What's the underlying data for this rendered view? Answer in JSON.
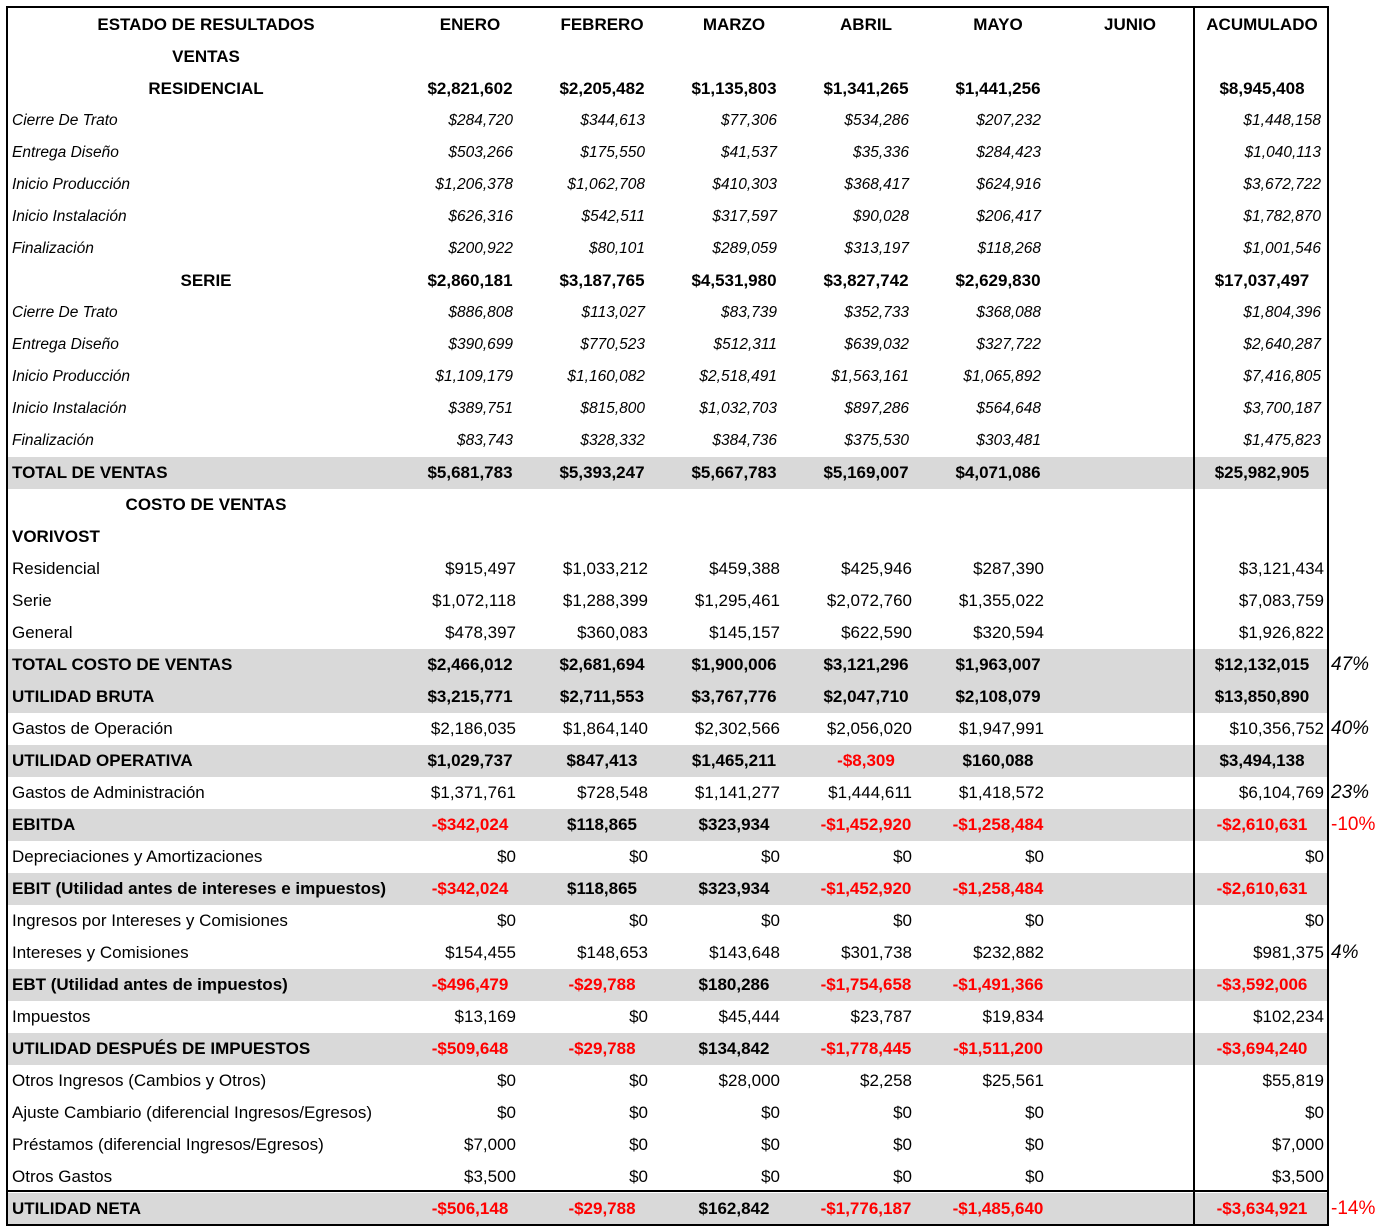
{
  "columns": [
    "ESTADO DE RESULTADOS",
    "ENERO",
    "FEBRERO",
    "MARZO",
    "ABRIL",
    "MAYO",
    "JUNIO",
    "ACUMULADO"
  ],
  "rows": [
    {
      "label": "VENTAS",
      "style": "section",
      "values": [
        "",
        "",
        "",
        "",
        "",
        "",
        ""
      ]
    },
    {
      "label": "RESIDENCIAL",
      "style": "subtotal",
      "values": [
        "$2,821,602",
        "$2,205,482",
        "$1,135,803",
        "$1,341,265",
        "$1,441,256",
        "",
        "$8,945,408"
      ]
    },
    {
      "label": "Cierre De Trato",
      "style": "italic",
      "values": [
        "$284,720",
        "$344,613",
        "$77,306",
        "$534,286",
        "$207,232",
        "",
        "$1,448,158"
      ]
    },
    {
      "label": "Entrega Diseño",
      "style": "italic",
      "values": [
        "$503,266",
        "$175,550",
        "$41,537",
        "$35,336",
        "$284,423",
        "",
        "$1,040,113"
      ]
    },
    {
      "label": "Inicio Producción",
      "style": "italic",
      "values": [
        "$1,206,378",
        "$1,062,708",
        "$410,303",
        "$368,417",
        "$624,916",
        "",
        "$3,672,722"
      ]
    },
    {
      "label": "Inicio Instalación",
      "style": "italic",
      "values": [
        "$626,316",
        "$542,511",
        "$317,597",
        "$90,028",
        "$206,417",
        "",
        "$1,782,870"
      ]
    },
    {
      "label": "Finalización",
      "style": "italic",
      "values": [
        "$200,922",
        "$80,101",
        "$289,059",
        "$313,197",
        "$118,268",
        "",
        "$1,001,546"
      ]
    },
    {
      "label": "SERIE",
      "style": "subtotal",
      "values": [
        "$2,860,181",
        "$3,187,765",
        "$4,531,980",
        "$3,827,742",
        "$2,629,830",
        "",
        "$17,037,497"
      ]
    },
    {
      "label": "Cierre De Trato",
      "style": "italic",
      "values": [
        "$886,808",
        "$113,027",
        "$83,739",
        "$352,733",
        "$368,088",
        "",
        "$1,804,396"
      ]
    },
    {
      "label": "Entrega Diseño",
      "style": "italic",
      "values": [
        "$390,699",
        "$770,523",
        "$512,311",
        "$639,032",
        "$327,722",
        "",
        "$2,640,287"
      ]
    },
    {
      "label": "Inicio Producción",
      "style": "italic",
      "values": [
        "$1,109,179",
        "$1,160,082",
        "$2,518,491",
        "$1,563,161",
        "$1,065,892",
        "",
        "$7,416,805"
      ]
    },
    {
      "label": "Inicio Instalación",
      "style": "italic",
      "values": [
        "$389,751",
        "$815,800",
        "$1,032,703",
        "$897,286",
        "$564,648",
        "",
        "$3,700,187"
      ]
    },
    {
      "label": "Finalización",
      "style": "italic",
      "values": [
        "$83,743",
        "$328,332",
        "$384,736",
        "$375,530",
        "$303,481",
        "",
        "$1,475,823"
      ]
    },
    {
      "label": "TOTAL DE VENTAS",
      "style": "total",
      "values": [
        "$5,681,783",
        "$5,393,247",
        "$5,667,783",
        "$5,169,007",
        "$4,071,086",
        "",
        "$25,982,905"
      ]
    },
    {
      "label": "COSTO DE VENTAS",
      "style": "section",
      "values": [
        "",
        "",
        "",
        "",
        "",
        "",
        ""
      ]
    },
    {
      "label": "VORIVOST",
      "style": "boldlabel",
      "values": [
        "",
        "",
        "",
        "",
        "",
        "",
        ""
      ]
    },
    {
      "label": "Residencial",
      "style": "normal",
      "values": [
        "$915,497",
        "$1,033,212",
        "$459,388",
        "$425,946",
        "$287,390",
        "",
        "$3,121,434"
      ]
    },
    {
      "label": "Serie",
      "style": "normal",
      "values": [
        "$1,072,118",
        "$1,288,399",
        "$1,295,461",
        "$2,072,760",
        "$1,355,022",
        "",
        "$7,083,759"
      ]
    },
    {
      "label": "General",
      "style": "normal",
      "values": [
        "$478,397",
        "$360,083",
        "$145,157",
        "$622,590",
        "$320,594",
        "",
        "$1,926,822"
      ]
    },
    {
      "label": "TOTAL COSTO DE VENTAS",
      "style": "total",
      "values": [
        "$2,466,012",
        "$2,681,694",
        "$1,900,006",
        "$3,121,296",
        "$1,963,007",
        "",
        "$12,132,015"
      ],
      "pct": "47%"
    },
    {
      "label": "UTILIDAD BRUTA",
      "style": "total",
      "values": [
        "$3,215,771",
        "$2,711,553",
        "$3,767,776",
        "$2,047,710",
        "$2,108,079",
        "",
        "$13,850,890"
      ]
    },
    {
      "label": "Gastos de Operación",
      "style": "normal",
      "values": [
        "$2,186,035",
        "$1,864,140",
        "$2,302,566",
        "$2,056,020",
        "$1,947,991",
        "",
        "$10,356,752"
      ],
      "pct": "40%"
    },
    {
      "label": "UTILIDAD OPERATIVA",
      "style": "total",
      "values": [
        "$1,029,737",
        "$847,413",
        "$1,465,211",
        "-$8,309",
        "$160,088",
        "",
        "$3,494,138"
      ]
    },
    {
      "label": "Gastos de Administración",
      "style": "normal",
      "values": [
        "$1,371,761",
        "$728,548",
        "$1,141,277",
        "$1,444,611",
        "$1,418,572",
        "",
        "$6,104,769"
      ],
      "pct": "23%"
    },
    {
      "label": "EBITDA",
      "style": "total",
      "values": [
        "-$342,024",
        "$118,865",
        "$323,934",
        "-$1,452,920",
        "-$1,258,484",
        "",
        "-$2,610,631"
      ],
      "pct": "-10%"
    },
    {
      "label": "Depreciaciones y Amortizaciones",
      "style": "normal",
      "values": [
        "$0",
        "$0",
        "$0",
        "$0",
        "$0",
        "",
        "$0"
      ]
    },
    {
      "label": "EBIT (Utilidad antes de intereses e impuestos)",
      "style": "total",
      "values": [
        "-$342,024",
        "$118,865",
        "$323,934",
        "-$1,452,920",
        "-$1,258,484",
        "",
        "-$2,610,631"
      ]
    },
    {
      "label": "Ingresos por Intereses y Comisiones",
      "style": "normal",
      "values": [
        "$0",
        "$0",
        "$0",
        "$0",
        "$0",
        "",
        "$0"
      ]
    },
    {
      "label": "Intereses y Comisiones",
      "style": "normal",
      "values": [
        "$154,455",
        "$148,653",
        "$143,648",
        "$301,738",
        "$232,882",
        "",
        "$981,375"
      ],
      "pct": "4%"
    },
    {
      "label": "EBT (Utilidad antes de impuestos)",
      "style": "total",
      "values": [
        "-$496,479",
        "-$29,788",
        "$180,286",
        "-$1,754,658",
        "-$1,491,366",
        "",
        "-$3,592,006"
      ]
    },
    {
      "label": "Impuestos",
      "style": "normal",
      "values": [
        "$13,169",
        "$0",
        "$45,444",
        "$23,787",
        "$19,834",
        "",
        "$102,234"
      ]
    },
    {
      "label": "UTILIDAD DESPUÉS DE IMPUESTOS",
      "style": "total",
      "values": [
        "-$509,648",
        "-$29,788",
        "$134,842",
        "-$1,778,445",
        "-$1,511,200",
        "",
        "-$3,694,240"
      ]
    },
    {
      "label": "Otros Ingresos (Cambios y Otros)",
      "style": "normal",
      "values": [
        "$0",
        "$0",
        "$28,000",
        "$2,258",
        "$25,561",
        "",
        "$55,819"
      ]
    },
    {
      "label": "Ajuste Cambiario (diferencial Ingresos/Egresos)",
      "style": "normal",
      "values": [
        "$0",
        "$0",
        "$0",
        "$0",
        "$0",
        "",
        "$0"
      ]
    },
    {
      "label": "Préstamos (diferencial Ingresos/Egresos)",
      "style": "normal",
      "values": [
        "$7,000",
        "$0",
        "$0",
        "$0",
        "$0",
        "",
        "$7,000"
      ]
    },
    {
      "label": "Otros Gastos",
      "style": "normal",
      "values": [
        "$3,500",
        "$0",
        "$0",
        "$0",
        "$0",
        "",
        "$3,500"
      ]
    },
    {
      "label": "UTILIDAD NETA",
      "style": "total",
      "values": [
        "-$506,148",
        "-$29,788",
        "$162,842",
        "-$1,776,187",
        "-$1,485,640",
        "",
        "-$3,634,921"
      ],
      "pct": "-14%"
    }
  ],
  "colors": {
    "negative": "#ff0000",
    "shade": "#d9d9d9",
    "text": "#000000"
  }
}
